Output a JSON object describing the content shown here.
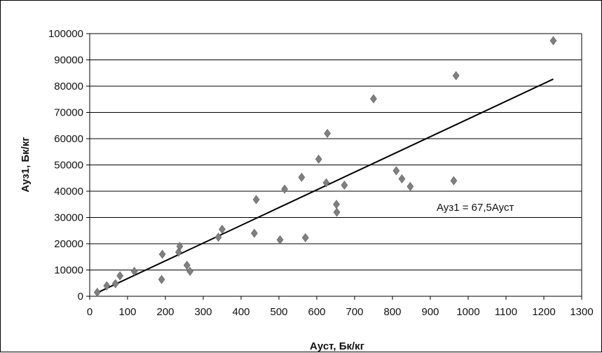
{
  "chart_data": {
    "type": "scatter",
    "title": "",
    "xlabel": "Ауст, Бк/кг",
    "ylabel": "Ауз1, Бк/кг",
    "xlim": [
      0,
      1300
    ],
    "ylim": [
      0,
      100000
    ],
    "x_ticks": [
      "0",
      "100",
      "200",
      "300",
      "400",
      "500",
      "600",
      "700",
      "800",
      "900",
      "1000",
      "1100",
      "1200",
      "1300"
    ],
    "y_ticks": [
      "0",
      "10000",
      "20000",
      "30000",
      "40000",
      "50000",
      "60000",
      "70000",
      "80000",
      "90000",
      "100000"
    ],
    "grid": "horizontal",
    "point_color": "#7f7f7f",
    "line_color": "#000000",
    "points": [
      {
        "x": 20,
        "y": 1500
      },
      {
        "x": 45,
        "y": 4000
      },
      {
        "x": 68,
        "y": 4800
      },
      {
        "x": 80,
        "y": 7800
      },
      {
        "x": 118,
        "y": 9500
      },
      {
        "x": 190,
        "y": 6400
      },
      {
        "x": 192,
        "y": 16000
      },
      {
        "x": 235,
        "y": 16800
      },
      {
        "x": 238,
        "y": 19000
      },
      {
        "x": 257,
        "y": 11800
      },
      {
        "x": 265,
        "y": 9500
      },
      {
        "x": 340,
        "y": 22500
      },
      {
        "x": 350,
        "y": 25500
      },
      {
        "x": 435,
        "y": 24000
      },
      {
        "x": 440,
        "y": 36800
      },
      {
        "x": 503,
        "y": 21500
      },
      {
        "x": 515,
        "y": 40800
      },
      {
        "x": 560,
        "y": 45300
      },
      {
        "x": 570,
        "y": 22300
      },
      {
        "x": 605,
        "y": 52200
      },
      {
        "x": 625,
        "y": 43200
      },
      {
        "x": 628,
        "y": 62000
      },
      {
        "x": 652,
        "y": 35000
      },
      {
        "x": 653,
        "y": 32000
      },
      {
        "x": 673,
        "y": 42300
      },
      {
        "x": 750,
        "y": 75200
      },
      {
        "x": 810,
        "y": 47800
      },
      {
        "x": 825,
        "y": 44700
      },
      {
        "x": 847,
        "y": 41800
      },
      {
        "x": 962,
        "y": 44000
      },
      {
        "x": 968,
        "y": 84000
      },
      {
        "x": 1225,
        "y": 97300
      }
    ],
    "trendline": {
      "slope": 67.5,
      "x_range": [
        20,
        1225
      ],
      "equation": "Ауз1 = 67,5Ауст"
    }
  }
}
